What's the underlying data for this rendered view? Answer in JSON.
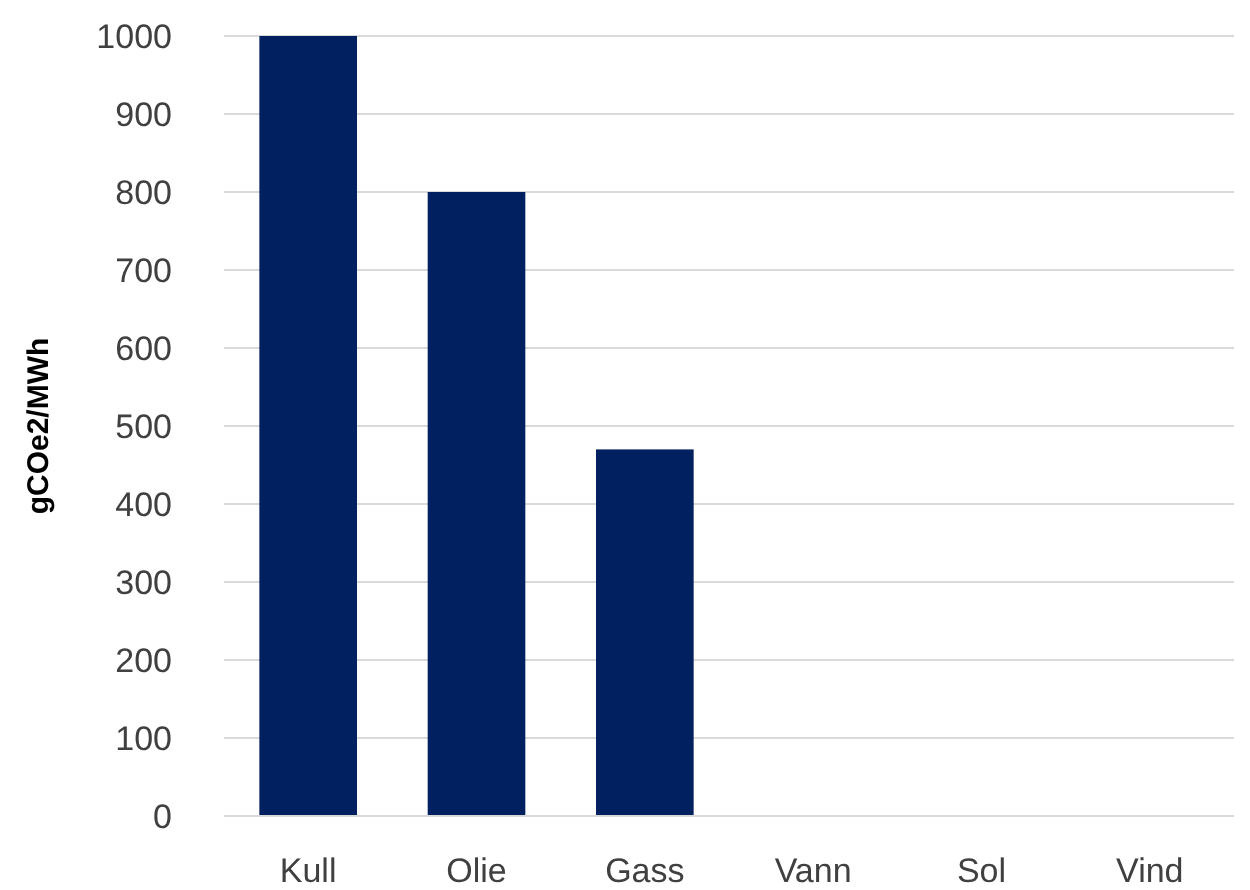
{
  "chart_data": {
    "type": "bar",
    "ylabel": "gCOe2/MWh",
    "categories": [
      "Kull",
      "Olie",
      "Gass",
      "Vann",
      "Sol",
      "Vind"
    ],
    "values": [
      1000,
      800,
      470,
      0,
      0,
      0
    ],
    "color": "#002060",
    "ylim": [
      0,
      1000
    ],
    "yticks": [
      0,
      100,
      200,
      300,
      400,
      500,
      600,
      700,
      800,
      900,
      1000
    ],
    "grid": "y"
  }
}
